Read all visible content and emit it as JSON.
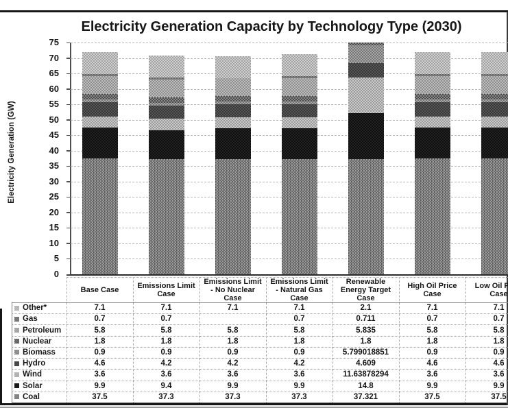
{
  "chart_data": {
    "type": "bar",
    "stacked": true,
    "title": "Electricity Generation Capacity by Technology Type (2030)",
    "ylabel": "Electricity Generation (GW)",
    "ylim": [
      0,
      75
    ],
    "ytick_step": 5,
    "grid": true,
    "legend_position": "data-table-left-column",
    "categories": [
      "Base Case",
      "Emissions Limit Case",
      "Emissions Limit - No Nuclear Case",
      "Emissions Limit - Natural Gas Case",
      "Renewable Energy Target Case",
      "High Oil Price Case",
      "Low Oil Price Case"
    ],
    "categories_display": [
      "Base Case",
      "Emissions Limit\nCase",
      "Emissions Limit\n- No Nuclear\nCase",
      "Emissions Limit\n- Natural Gas\nCase",
      "Renewable\nEnergy Target\nCase",
      "High Oil Price\nCase",
      "Low Oil Price\nCase"
    ],
    "stack_order_bottom_to_top": [
      "Coal",
      "Solar",
      "Wind",
      "Hydro",
      "Biomass",
      "Nuclear",
      "Petroleum",
      "Gas",
      "Other*"
    ],
    "series": [
      {
        "name": "Other*",
        "color": "#cfcfcf",
        "color2": "#a3a3a3",
        "values": [
          7.1,
          7.1,
          7.1,
          7.1,
          2.1,
          7.1,
          7.1
        ],
        "display": [
          "7.1",
          "7.1",
          "7.1",
          "7.1",
          "2.1",
          "7.1",
          "7.1"
        ]
      },
      {
        "name": "Gas",
        "color": "#8e8e8e",
        "color2": "#616161",
        "values": [
          0.7,
          0.7,
          null,
          0.7,
          0.711,
          0.7,
          0.7
        ],
        "display": [
          "0.7",
          "0.7",
          "",
          "0.7",
          "0.711",
          "0.7",
          "0.7"
        ]
      },
      {
        "name": "Petroleum",
        "color": "#bdbdbd",
        "color2": "#8e8e8e",
        "values": [
          5.8,
          5.8,
          5.8,
          5.8,
          5.835,
          5.8,
          5.8
        ],
        "display": [
          "5.8",
          "5.8",
          "5.8",
          "5.8",
          "5.835",
          "5.8",
          "5.8"
        ]
      },
      {
        "name": "Nuclear",
        "color": "#8a8a8a",
        "color2": "#4a4a4a",
        "values": [
          1.8,
          1.8,
          1.8,
          1.8,
          1.8,
          1.8,
          1.8
        ],
        "display": [
          "1.8",
          "1.8",
          "1.8",
          "1.8",
          "1.8",
          "1.8",
          "1.8"
        ]
      },
      {
        "name": "Biomass",
        "color": "#a8a8a8",
        "color2": "#757575",
        "values": [
          0.9,
          0.9,
          0.9,
          0.9,
          5.799018851,
          0.9,
          0.9
        ],
        "display": [
          "0.9",
          "0.9",
          "0.9",
          "0.9",
          "5.799018851",
          "0.9",
          "0.9"
        ]
      },
      {
        "name": "Hydro",
        "color": "#565656",
        "color2": "#383838",
        "values": [
          4.6,
          4.2,
          4.2,
          4.2,
          4.609,
          4.6,
          4.6
        ],
        "display": [
          "4.6",
          "4.2",
          "4.2",
          "4.2",
          "4.609",
          "4.6",
          "4.6"
        ]
      },
      {
        "name": "Wind",
        "color": "#c9c9c9",
        "color2": "#9b9b9b",
        "values": [
          3.6,
          3.6,
          3.6,
          3.6,
          11.63878294,
          3.6,
          3.6
        ],
        "display": [
          "3.6",
          "3.6",
          "3.6",
          "3.6",
          "11.63878294",
          "3.6",
          "3.6"
        ]
      },
      {
        "name": "Solar",
        "color": "#222222",
        "color2": "#0f0f0f",
        "values": [
          9.9,
          9.4,
          9.9,
          9.9,
          14.8,
          9.9,
          9.9
        ],
        "display": [
          "9.9",
          "9.4",
          "9.9",
          "9.9",
          "14.8",
          "9.9",
          "9.9"
        ]
      },
      {
        "name": "Coal",
        "color": "#9d9d9d",
        "color2": "#6d6d6d",
        "values": [
          37.5,
          37.3,
          37.3,
          37.3,
          37.321,
          37.5,
          37.5
        ],
        "display": [
          "37.5",
          "37.3",
          "37.3",
          "37.3",
          "37.321",
          "37.5",
          "37.5"
        ]
      }
    ]
  }
}
